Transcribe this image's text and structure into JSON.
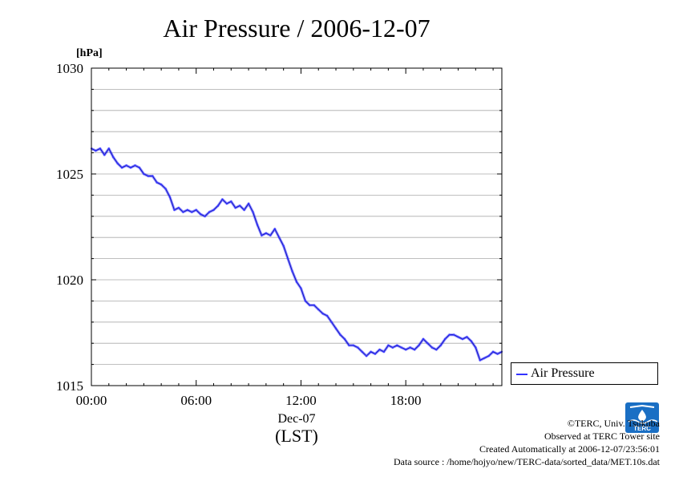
{
  "chart_data": {
    "type": "line",
    "title": "Air Pressure / 2006-12-07",
    "ylabel": "[hPa]",
    "xlabel": "Dec-07",
    "xlabel2": "(LST)",
    "ylim": [
      1015,
      1030
    ],
    "xlim_hours": [
      0,
      23.5
    ],
    "yticks": [
      "1015",
      "1020",
      "1025",
      "1030"
    ],
    "xticks": [
      {
        "hour": 0,
        "label": "00:00"
      },
      {
        "hour": 6,
        "label": "06:00"
      },
      {
        "hour": 12,
        "label": "12:00"
      },
      {
        "hour": 18,
        "label": "18:00"
      }
    ],
    "grid": true,
    "legend": "right",
    "series": [
      {
        "name": "Air Pressure",
        "color": "#3333ff",
        "points": [
          [
            0.0,
            1026.2
          ],
          [
            0.25,
            1026.1
          ],
          [
            0.5,
            1026.2
          ],
          [
            0.75,
            1025.9
          ],
          [
            1.0,
            1026.2
          ],
          [
            1.25,
            1025.8
          ],
          [
            1.5,
            1025.5
          ],
          [
            1.75,
            1025.3
          ],
          [
            2.0,
            1025.4
          ],
          [
            2.25,
            1025.3
          ],
          [
            2.5,
            1025.4
          ],
          [
            2.75,
            1025.3
          ],
          [
            3.0,
            1025.0
          ],
          [
            3.25,
            1024.9
          ],
          [
            3.5,
            1024.9
          ],
          [
            3.75,
            1024.6
          ],
          [
            4.0,
            1024.5
          ],
          [
            4.25,
            1024.3
          ],
          [
            4.5,
            1023.9
          ],
          [
            4.75,
            1023.3
          ],
          [
            5.0,
            1023.4
          ],
          [
            5.25,
            1023.2
          ],
          [
            5.5,
            1023.3
          ],
          [
            5.75,
            1023.2
          ],
          [
            6.0,
            1023.3
          ],
          [
            6.25,
            1023.1
          ],
          [
            6.5,
            1023.0
          ],
          [
            6.75,
            1023.2
          ],
          [
            7.0,
            1023.3
          ],
          [
            7.25,
            1023.5
          ],
          [
            7.5,
            1023.8
          ],
          [
            7.75,
            1023.6
          ],
          [
            8.0,
            1023.7
          ],
          [
            8.25,
            1023.4
          ],
          [
            8.5,
            1023.5
          ],
          [
            8.75,
            1023.3
          ],
          [
            9.0,
            1023.6
          ],
          [
            9.25,
            1023.2
          ],
          [
            9.5,
            1022.6
          ],
          [
            9.75,
            1022.1
          ],
          [
            10.0,
            1022.2
          ],
          [
            10.25,
            1022.1
          ],
          [
            10.5,
            1022.4
          ],
          [
            10.75,
            1022.0
          ],
          [
            11.0,
            1021.6
          ],
          [
            11.25,
            1021.0
          ],
          [
            11.5,
            1020.4
          ],
          [
            11.75,
            1019.9
          ],
          [
            12.0,
            1019.6
          ],
          [
            12.25,
            1019.0
          ],
          [
            12.5,
            1018.8
          ],
          [
            12.75,
            1018.8
          ],
          [
            13.0,
            1018.6
          ],
          [
            13.25,
            1018.4
          ],
          [
            13.5,
            1018.3
          ],
          [
            13.75,
            1018.0
          ],
          [
            14.0,
            1017.7
          ],
          [
            14.25,
            1017.4
          ],
          [
            14.5,
            1017.2
          ],
          [
            14.75,
            1016.9
          ],
          [
            15.0,
            1016.9
          ],
          [
            15.25,
            1016.8
          ],
          [
            15.5,
            1016.6
          ],
          [
            15.75,
            1016.4
          ],
          [
            16.0,
            1016.6
          ],
          [
            16.25,
            1016.5
          ],
          [
            16.5,
            1016.7
          ],
          [
            16.75,
            1016.6
          ],
          [
            17.0,
            1016.9
          ],
          [
            17.25,
            1016.8
          ],
          [
            17.5,
            1016.9
          ],
          [
            17.75,
            1016.8
          ],
          [
            18.0,
            1016.7
          ],
          [
            18.25,
            1016.8
          ],
          [
            18.5,
            1016.7
          ],
          [
            18.75,
            1016.9
          ],
          [
            19.0,
            1017.2
          ],
          [
            19.25,
            1017.0
          ],
          [
            19.5,
            1016.8
          ],
          [
            19.75,
            1016.7
          ],
          [
            20.0,
            1016.9
          ],
          [
            20.25,
            1017.2
          ],
          [
            20.5,
            1017.4
          ],
          [
            20.75,
            1017.4
          ],
          [
            21.0,
            1017.3
          ],
          [
            21.25,
            1017.2
          ],
          [
            21.5,
            1017.3
          ],
          [
            21.75,
            1017.1
          ],
          [
            22.0,
            1016.8
          ],
          [
            22.25,
            1016.2
          ],
          [
            22.5,
            1016.3
          ],
          [
            22.75,
            1016.4
          ],
          [
            23.0,
            1016.6
          ],
          [
            23.25,
            1016.5
          ],
          [
            23.5,
            1016.6
          ]
        ]
      }
    ]
  },
  "credits": {
    "copyright": "©TERC, Univ. Tsukuba",
    "observed": "Observed at TERC Tower site",
    "created": "Created Automatically at 2006-12-07/23:56:01",
    "source": "Data source : /home/hojyo/new/TERC-data/sorted_data/MET.10s.dat"
  },
  "logo": {
    "text": "TERC",
    "color": "#1a6fc4"
  }
}
